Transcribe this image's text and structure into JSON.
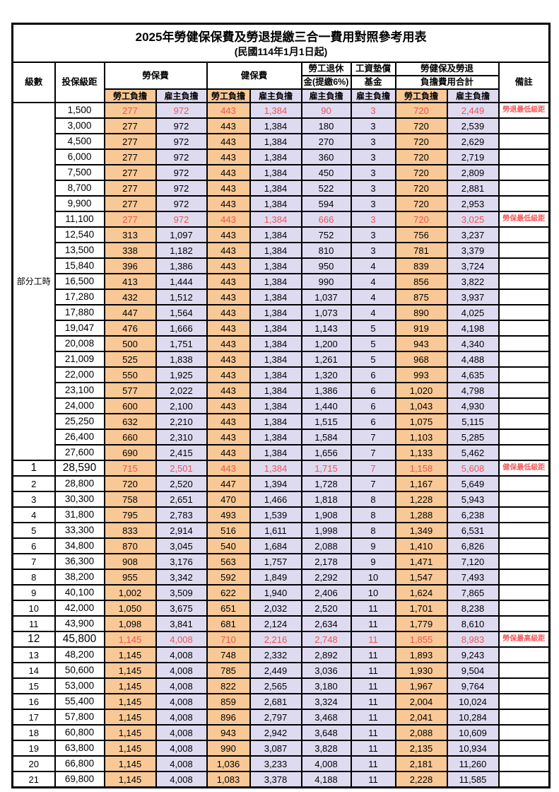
{
  "title": "2025年勞健保保費及勞退提繳三合一費用對照參考用表",
  "subtitle": "(民國114年1月1日起)",
  "header": {
    "level": "級數",
    "bracket": "投保級距",
    "labor_insurance": "勞保費",
    "health_insurance": "健保費",
    "pension_line1": "勞工退休",
    "pension_line2": "金(提繳6%)",
    "wage_fund_line1": "工資墊償",
    "wage_fund_line2": "基金",
    "total_line1": "勞健保及勞退",
    "total_line2": "負擔費用合計",
    "remark": "備註",
    "employee": "勞工負擔",
    "employer": "雇主負擔",
    "part_time": "部分工時"
  },
  "colors": {
    "employee_bg": "#F8C896",
    "employer_bg": "#DEDBF1",
    "highlight_text": "#EE5555",
    "remark_text": "#F75A5A",
    "border": "#000000"
  },
  "rows": [
    {
      "bracket": "1,500",
      "v": [
        "277",
        "972",
        "443",
        "1,384",
        "90",
        "3",
        "720",
        "2,449"
      ],
      "remark": "勞退最低級距",
      "red": true
    },
    {
      "bracket": "3,000",
      "v": [
        "277",
        "972",
        "443",
        "1,384",
        "180",
        "3",
        "720",
        "2,539"
      ]
    },
    {
      "bracket": "4,500",
      "v": [
        "277",
        "972",
        "443",
        "1,384",
        "270",
        "3",
        "720",
        "2,629"
      ]
    },
    {
      "bracket": "6,000",
      "v": [
        "277",
        "972",
        "443",
        "1,384",
        "360",
        "3",
        "720",
        "2,719"
      ]
    },
    {
      "bracket": "7,500",
      "v": [
        "277",
        "972",
        "443",
        "1,384",
        "450",
        "3",
        "720",
        "2,809"
      ]
    },
    {
      "bracket": "8,700",
      "v": [
        "277",
        "972",
        "443",
        "1,384",
        "522",
        "3",
        "720",
        "2,881"
      ]
    },
    {
      "bracket": "9,900",
      "v": [
        "277",
        "972",
        "443",
        "1,384",
        "594",
        "3",
        "720",
        "2,953"
      ]
    },
    {
      "bracket": "11,100",
      "v": [
        "277",
        "972",
        "443",
        "1,384",
        "666",
        "3",
        "720",
        "3,025"
      ],
      "remark": "勞保最低級距",
      "red": true
    },
    {
      "bracket": "12,540",
      "v": [
        "313",
        "1,097",
        "443",
        "1,384",
        "752",
        "3",
        "756",
        "3,237"
      ]
    },
    {
      "bracket": "13,500",
      "v": [
        "338",
        "1,182",
        "443",
        "1,384",
        "810",
        "3",
        "781",
        "3,379"
      ]
    },
    {
      "bracket": "15,840",
      "v": [
        "396",
        "1,386",
        "443",
        "1,384",
        "950",
        "4",
        "839",
        "3,724"
      ]
    },
    {
      "bracket": "16,500",
      "v": [
        "413",
        "1,444",
        "443",
        "1,384",
        "990",
        "4",
        "856",
        "3,822"
      ]
    },
    {
      "bracket": "17,280",
      "v": [
        "432",
        "1,512",
        "443",
        "1,384",
        "1,037",
        "4",
        "875",
        "3,937"
      ]
    },
    {
      "bracket": "17,880",
      "v": [
        "447",
        "1,564",
        "443",
        "1,384",
        "1,073",
        "4",
        "890",
        "4,025"
      ]
    },
    {
      "bracket": "19,047",
      "v": [
        "476",
        "1,666",
        "443",
        "1,384",
        "1,143",
        "5",
        "919",
        "4,198"
      ]
    },
    {
      "bracket": "20,008",
      "v": [
        "500",
        "1,751",
        "443",
        "1,384",
        "1,200",
        "5",
        "943",
        "4,340"
      ]
    },
    {
      "bracket": "21,009",
      "v": [
        "525",
        "1,838",
        "443",
        "1,384",
        "1,261",
        "5",
        "968",
        "4,488"
      ]
    },
    {
      "bracket": "22,000",
      "v": [
        "550",
        "1,925",
        "443",
        "1,384",
        "1,320",
        "6",
        "993",
        "4,635"
      ]
    },
    {
      "bracket": "23,100",
      "v": [
        "577",
        "2,022",
        "443",
        "1,384",
        "1,386",
        "6",
        "1,020",
        "4,798"
      ]
    },
    {
      "bracket": "24,000",
      "v": [
        "600",
        "2,100",
        "443",
        "1,384",
        "1,440",
        "6",
        "1,043",
        "4,930"
      ]
    },
    {
      "bracket": "25,250",
      "v": [
        "632",
        "2,210",
        "443",
        "1,384",
        "1,515",
        "6",
        "1,075",
        "5,115"
      ]
    },
    {
      "bracket": "26,400",
      "v": [
        "660",
        "2,310",
        "443",
        "1,384",
        "1,584",
        "7",
        "1,103",
        "5,285"
      ]
    },
    {
      "bracket": "27,600",
      "v": [
        "690",
        "2,415",
        "443",
        "1,384",
        "1,656",
        "7",
        "1,133",
        "5,462"
      ]
    },
    {
      "level": "1",
      "bracket": "28,590",
      "v": [
        "715",
        "2,501",
        "443",
        "1,384",
        "1,715",
        "7",
        "1,158",
        "5,608"
      ],
      "remark": "健保最低級距",
      "red": true,
      "big": true
    },
    {
      "level": "2",
      "bracket": "28,800",
      "v": [
        "720",
        "2,520",
        "447",
        "1,394",
        "1,728",
        "7",
        "1,167",
        "5,649"
      ]
    },
    {
      "level": "3",
      "bracket": "30,300",
      "v": [
        "758",
        "2,651",
        "470",
        "1,466",
        "1,818",
        "8",
        "1,228",
        "5,943"
      ]
    },
    {
      "level": "4",
      "bracket": "31,800",
      "v": [
        "795",
        "2,783",
        "493",
        "1,539",
        "1,908",
        "8",
        "1,288",
        "6,238"
      ]
    },
    {
      "level": "5",
      "bracket": "33,300",
      "v": [
        "833",
        "2,914",
        "516",
        "1,611",
        "1,998",
        "8",
        "1,349",
        "6,531"
      ]
    },
    {
      "level": "6",
      "bracket": "34,800",
      "v": [
        "870",
        "3,045",
        "540",
        "1,684",
        "2,088",
        "9",
        "1,410",
        "6,826"
      ]
    },
    {
      "level": "7",
      "bracket": "36,300",
      "v": [
        "908",
        "3,176",
        "563",
        "1,757",
        "2,178",
        "9",
        "1,471",
        "7,120"
      ]
    },
    {
      "level": "8",
      "bracket": "38,200",
      "v": [
        "955",
        "3,342",
        "592",
        "1,849",
        "2,292",
        "10",
        "1,547",
        "7,493"
      ]
    },
    {
      "level": "9",
      "bracket": "40,100",
      "v": [
        "1,002",
        "3,509",
        "622",
        "1,940",
        "2,406",
        "10",
        "1,624",
        "7,865"
      ]
    },
    {
      "level": "10",
      "bracket": "42,000",
      "v": [
        "1,050",
        "3,675",
        "651",
        "2,032",
        "2,520",
        "11",
        "1,701",
        "8,238"
      ]
    },
    {
      "level": "11",
      "bracket": "43,900",
      "v": [
        "1,098",
        "3,841",
        "681",
        "2,124",
        "2,634",
        "11",
        "1,779",
        "8,610"
      ]
    },
    {
      "level": "12",
      "bracket": "45,800",
      "v": [
        "1,145",
        "4,008",
        "710",
        "2,216",
        "2,748",
        "11",
        "1,855",
        "8,983"
      ],
      "remark": "勞保最高級距",
      "red": true,
      "big": true
    },
    {
      "level": "13",
      "bracket": "48,200",
      "v": [
        "1,145",
        "4,008",
        "748",
        "2,332",
        "2,892",
        "11",
        "1,893",
        "9,243"
      ]
    },
    {
      "level": "14",
      "bracket": "50,600",
      "v": [
        "1,145",
        "4,008",
        "785",
        "2,449",
        "3,036",
        "11",
        "1,930",
        "9,504"
      ]
    },
    {
      "level": "15",
      "bracket": "53,000",
      "v": [
        "1,145",
        "4,008",
        "822",
        "2,565",
        "3,180",
        "11",
        "1,967",
        "9,764"
      ]
    },
    {
      "level": "16",
      "bracket": "55,400",
      "v": [
        "1,145",
        "4,008",
        "859",
        "2,681",
        "3,324",
        "11",
        "2,004",
        "10,024"
      ]
    },
    {
      "level": "17",
      "bracket": "57,800",
      "v": [
        "1,145",
        "4,008",
        "896",
        "2,797",
        "3,468",
        "11",
        "2,041",
        "10,284"
      ]
    },
    {
      "level": "18",
      "bracket": "60,800",
      "v": [
        "1,145",
        "4,008",
        "943",
        "2,942",
        "3,648",
        "11",
        "2,088",
        "10,609"
      ]
    },
    {
      "level": "19",
      "bracket": "63,800",
      "v": [
        "1,145",
        "4,008",
        "990",
        "3,087",
        "3,828",
        "11",
        "2,135",
        "10,934"
      ]
    },
    {
      "level": "20",
      "bracket": "66,800",
      "v": [
        "1,145",
        "4,008",
        "1,036",
        "3,233",
        "4,008",
        "11",
        "2,181",
        "11,260"
      ]
    },
    {
      "level": "21",
      "bracket": "69,800",
      "v": [
        "1,145",
        "4,008",
        "1,083",
        "3,378",
        "4,188",
        "11",
        "2,228",
        "11,585"
      ]
    }
  ]
}
